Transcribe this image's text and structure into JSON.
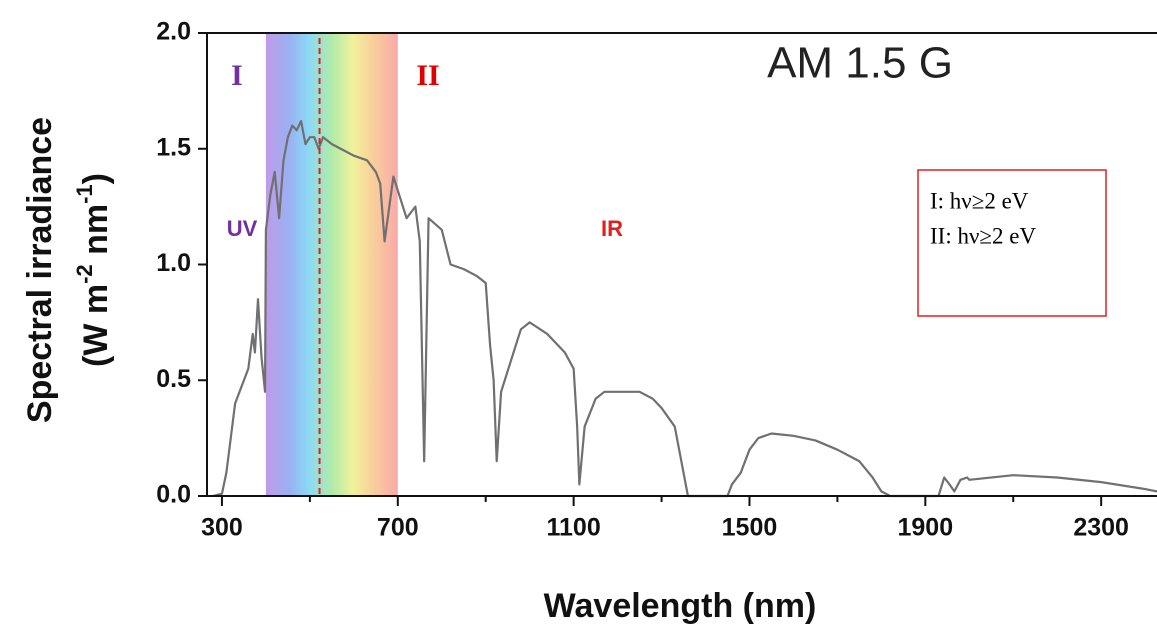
{
  "chart_data": {
    "type": "line",
    "color": "#707070",
    "xlabel": "Wavelength (nm)",
    "ylabel": "Spectral irradiance",
    "ylabel_units": [
      "(W m",
      "-2",
      " nm",
      "-1",
      ")"
    ],
    "xlim": [
      266,
      2427
    ],
    "ylim": [
      0,
      2
    ],
    "xticks": [
      300,
      700,
      1100,
      1500,
      1900,
      2300
    ],
    "xminor": [
      500,
      900,
      1300,
      1700,
      2100
    ],
    "yticks": [
      {
        "value": 0,
        "label": "0.0"
      },
      0.5,
      {
        "value": 1,
        "label": "1.0"
      },
      1.5,
      {
        "value": 2,
        "label": "2.0"
      }
    ],
    "visible_band": [
      400,
      700
    ],
    "threshold_x": 522,
    "threshold_color": "#e02020",
    "x": [
      280,
      300,
      310,
      320,
      330,
      340,
      350,
      360,
      370,
      375,
      382,
      390,
      398,
      400,
      410,
      420,
      430,
      440,
      450,
      460,
      470,
      480,
      490,
      500,
      510,
      520,
      530,
      550,
      570,
      600,
      630,
      650,
      660,
      670,
      690,
      700,
      720,
      740,
      750,
      760,
      770,
      800,
      820,
      850,
      880,
      900,
      910,
      918,
      925,
      935,
      960,
      980,
      1000,
      1040,
      1080,
      1100,
      1108,
      1113,
      1125,
      1150,
      1170,
      1200,
      1250,
      1280,
      1300,
      1330,
      1350,
      1360,
      1450,
      1460,
      1480,
      1500,
      1520,
      1550,
      1600,
      1650,
      1700,
      1750,
      1780,
      1800,
      1820,
      1930,
      1943,
      1955,
      1966,
      1980,
      1995,
      2000,
      2100,
      2200,
      2300,
      2400,
      2427
    ],
    "values": [
      0,
      0.01,
      0.1,
      0.25,
      0.4,
      0.45,
      0.5,
      0.55,
      0.7,
      0.62,
      0.85,
      0.6,
      0.45,
      1.15,
      1.3,
      1.4,
      1.2,
      1.45,
      1.55,
      1.6,
      1.58,
      1.62,
      1.52,
      1.55,
      1.55,
      1.5,
      1.55,
      1.52,
      1.5,
      1.47,
      1.45,
      1.4,
      1.35,
      1.1,
      1.38,
      1.32,
      1.2,
      1.25,
      1.1,
      0.15,
      1.2,
      1.15,
      1.0,
      0.98,
      0.95,
      0.92,
      0.65,
      0.5,
      0.15,
      0.45,
      0.6,
      0.72,
      0.75,
      0.7,
      0.62,
      0.55,
      0.3,
      0.05,
      0.3,
      0.42,
      0.45,
      0.45,
      0.45,
      0.42,
      0.38,
      0.3,
      0.1,
      0,
      0,
      0.05,
      0.1,
      0.2,
      0.25,
      0.27,
      0.26,
      0.24,
      0.2,
      0.15,
      0.08,
      0.02,
      0,
      0,
      0.08,
      0.05,
      0.02,
      0.07,
      0.08,
      0.07,
      0.09,
      0.08,
      0.06,
      0.03,
      0.02
    ],
    "annotations": [
      {
        "text": "I",
        "color": "#7030a0"
      },
      {
        "text": "II",
        "color": "#e00000"
      },
      {
        "text": "AM 1.5 G",
        "color": "#222222"
      },
      {
        "text": "UV",
        "color": "#7030a0"
      },
      {
        "text": "IR",
        "color": "#e02020"
      }
    ],
    "legend_box": [
      "I: hν≥2 eV",
      "II: hν≥2 eV"
    ]
  }
}
